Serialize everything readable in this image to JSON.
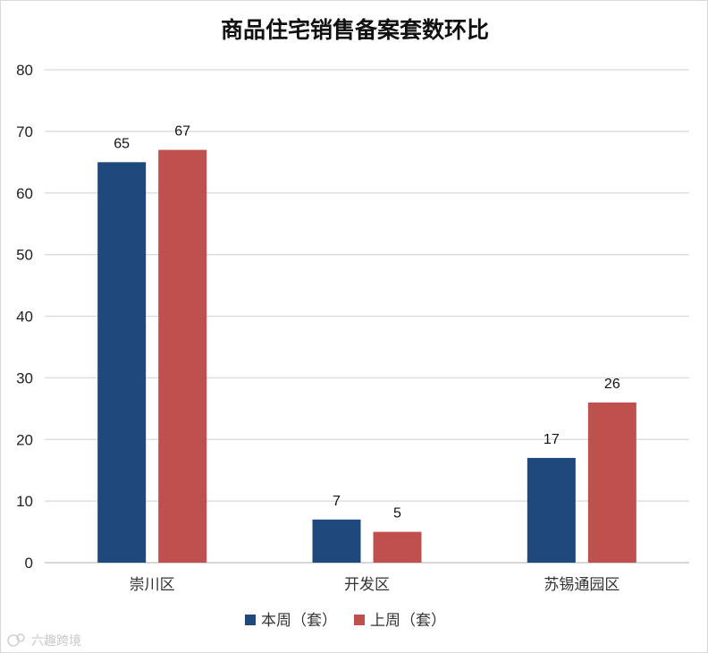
{
  "chart_data": {
    "type": "bar",
    "title": "商品住宅销售备案套数环比",
    "categories": [
      "崇川区",
      "开发区",
      "苏锡通园区"
    ],
    "series": [
      {
        "name": "本周（套）",
        "values": [
          65,
          7,
          17
        ],
        "color": "#1f497d"
      },
      {
        "name": "上周（套）",
        "values": [
          67,
          5,
          26
        ],
        "color": "#c0504d"
      }
    ],
    "ylim": [
      0,
      80
    ],
    "yticks": [
      0,
      10,
      20,
      30,
      40,
      50,
      60,
      70,
      80
    ],
    "grid": true,
    "legend_position": "bottom",
    "data_labels": true
  },
  "watermark": {
    "text": "六趣跨境",
    "icon": "watermark-logo-icon"
  },
  "colors": {
    "grid": "#d9d9d9",
    "axis": "#bfbfbf"
  }
}
